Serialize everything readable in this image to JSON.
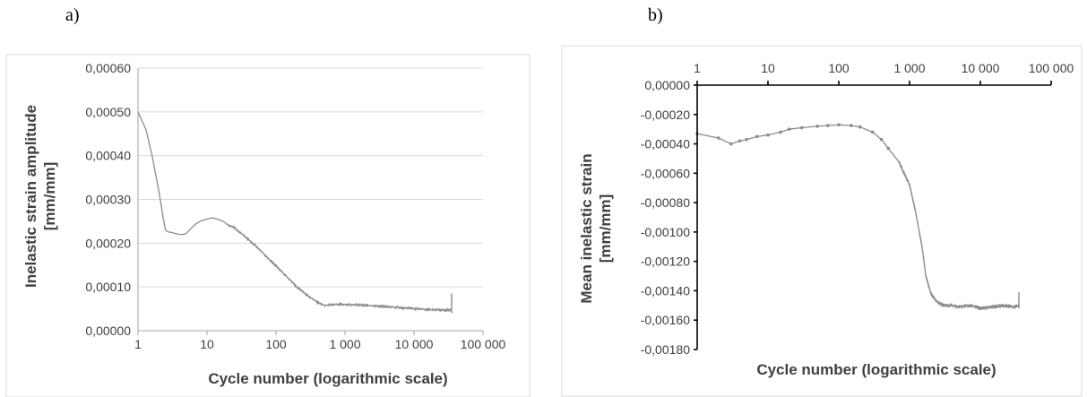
{
  "panel_labels": [
    "a)",
    "b)"
  ],
  "chart_data": [
    {
      "type": "line",
      "panel": "a)",
      "title": "",
      "xlabel": "Cycle number (logarithmic scale)",
      "ylabel_line1": "Inelastic strain amplitude",
      "ylabel_line2": "[mm/mm]",
      "x_scale": "log",
      "xlim": [
        1,
        100000
      ],
      "ylim": [
        0,
        0.0006
      ],
      "x_tick_values": [
        1,
        10,
        100,
        1000,
        10000,
        100000
      ],
      "x_tick_labels": [
        "1",
        "10",
        "100",
        "1 000",
        "10 000",
        "100 000"
      ],
      "y_tick_values": [
        0,
        0.0001,
        0.0002,
        0.0003,
        0.0004,
        0.0005,
        0.0006
      ],
      "y_tick_labels": [
        "0,00000",
        "0,00010",
        "0,00020",
        "0,00030",
        "0,00040",
        "0,00050",
        "0,00060"
      ],
      "horizontal_grid": true,
      "series_color": "#8c8c8c",
      "series": [
        {
          "name": "",
          "x": [
            1,
            1.3,
            1.6,
            2,
            2.3,
            2.5,
            2.8,
            3,
            3.5,
            4,
            4.5,
            5,
            6,
            7,
            8,
            10,
            12,
            14,
            17,
            20,
            25,
            30,
            40,
            50,
            70,
            100,
            150,
            200,
            300,
            400,
            500,
            700,
            1000,
            2000,
            3000,
            5000,
            10000,
            20000,
            30000,
            35000
          ],
          "y": [
            0.0005,
            0.00046,
            0.0004,
            0.00032,
            0.00026,
            0.00023,
            0.000225,
            0.000225,
            0.000222,
            0.00022,
            0.00022,
            0.000222,
            0.000235,
            0.000245,
            0.00025,
            0.000255,
            0.000258,
            0.000255,
            0.00025,
            0.000242,
            0.000235,
            0.000225,
            0.000208,
            0.000195,
            0.000172,
            0.000148,
            0.00012,
            0.0001,
            7.8e-05,
            6.5e-05,
            5.8e-05,
            6e-05,
            6e-05,
            5.8e-05,
            5.6e-05,
            5.4e-05,
            5e-05,
            4.8e-05,
            4.7e-05,
            4.8e-05
          ]
        }
      ]
    },
    {
      "type": "line",
      "panel": "b)",
      "title": "",
      "xlabel": "Cycle number (logarithmic scale)",
      "ylabel_line1": "Mean inelastic strain",
      "ylabel_line2": "[mm/mm]",
      "x_scale": "log",
      "x_axis_position": "top",
      "xlim": [
        1,
        100000
      ],
      "ylim": [
        -0.0018,
        0
      ],
      "x_tick_values": [
        1,
        10,
        100,
        1000,
        10000,
        100000
      ],
      "x_tick_labels": [
        "1",
        "10",
        "100",
        "1 000",
        "10 000",
        "100 000"
      ],
      "y_tick_values": [
        0,
        -0.0002,
        -0.0004,
        -0.0006,
        -0.0008,
        -0.001,
        -0.0012,
        -0.0014,
        -0.0016,
        -0.0018
      ],
      "y_tick_labels": [
        "0,00000",
        "-0,00020",
        "-0,00040",
        "-0,00060",
        "-0,00080",
        "-0,00100",
        "-0,00120",
        "-0,00140",
        "-0,00160",
        "-0,00180"
      ],
      "horizontal_grid": false,
      "series_color": "#8c8c8c",
      "series": [
        {
          "name": "",
          "x": [
            1,
            2,
            3,
            4,
            5,
            7,
            10,
            15,
            20,
            30,
            50,
            70,
            100,
            150,
            200,
            300,
            400,
            500,
            700,
            1000,
            1200,
            1500,
            1700,
            2000,
            2500,
            3000,
            4000,
            5000,
            7000,
            10000,
            15000,
            20000,
            30000,
            35000
          ],
          "y": [
            -0.00033,
            -0.00036,
            -0.0004,
            -0.00038,
            -0.00037,
            -0.00035,
            -0.00034,
            -0.00032,
            -0.0003,
            -0.00029,
            -0.00028,
            -0.000275,
            -0.00027,
            -0.000275,
            -0.000285,
            -0.00032,
            -0.00037,
            -0.00043,
            -0.00052,
            -0.00068,
            -0.00085,
            -0.0011,
            -0.0013,
            -0.00142,
            -0.00148,
            -0.0015,
            -0.0015,
            -0.00151,
            -0.0015,
            -0.00152,
            -0.00151,
            -0.0015,
            -0.00151,
            -0.0015
          ]
        }
      ]
    }
  ]
}
